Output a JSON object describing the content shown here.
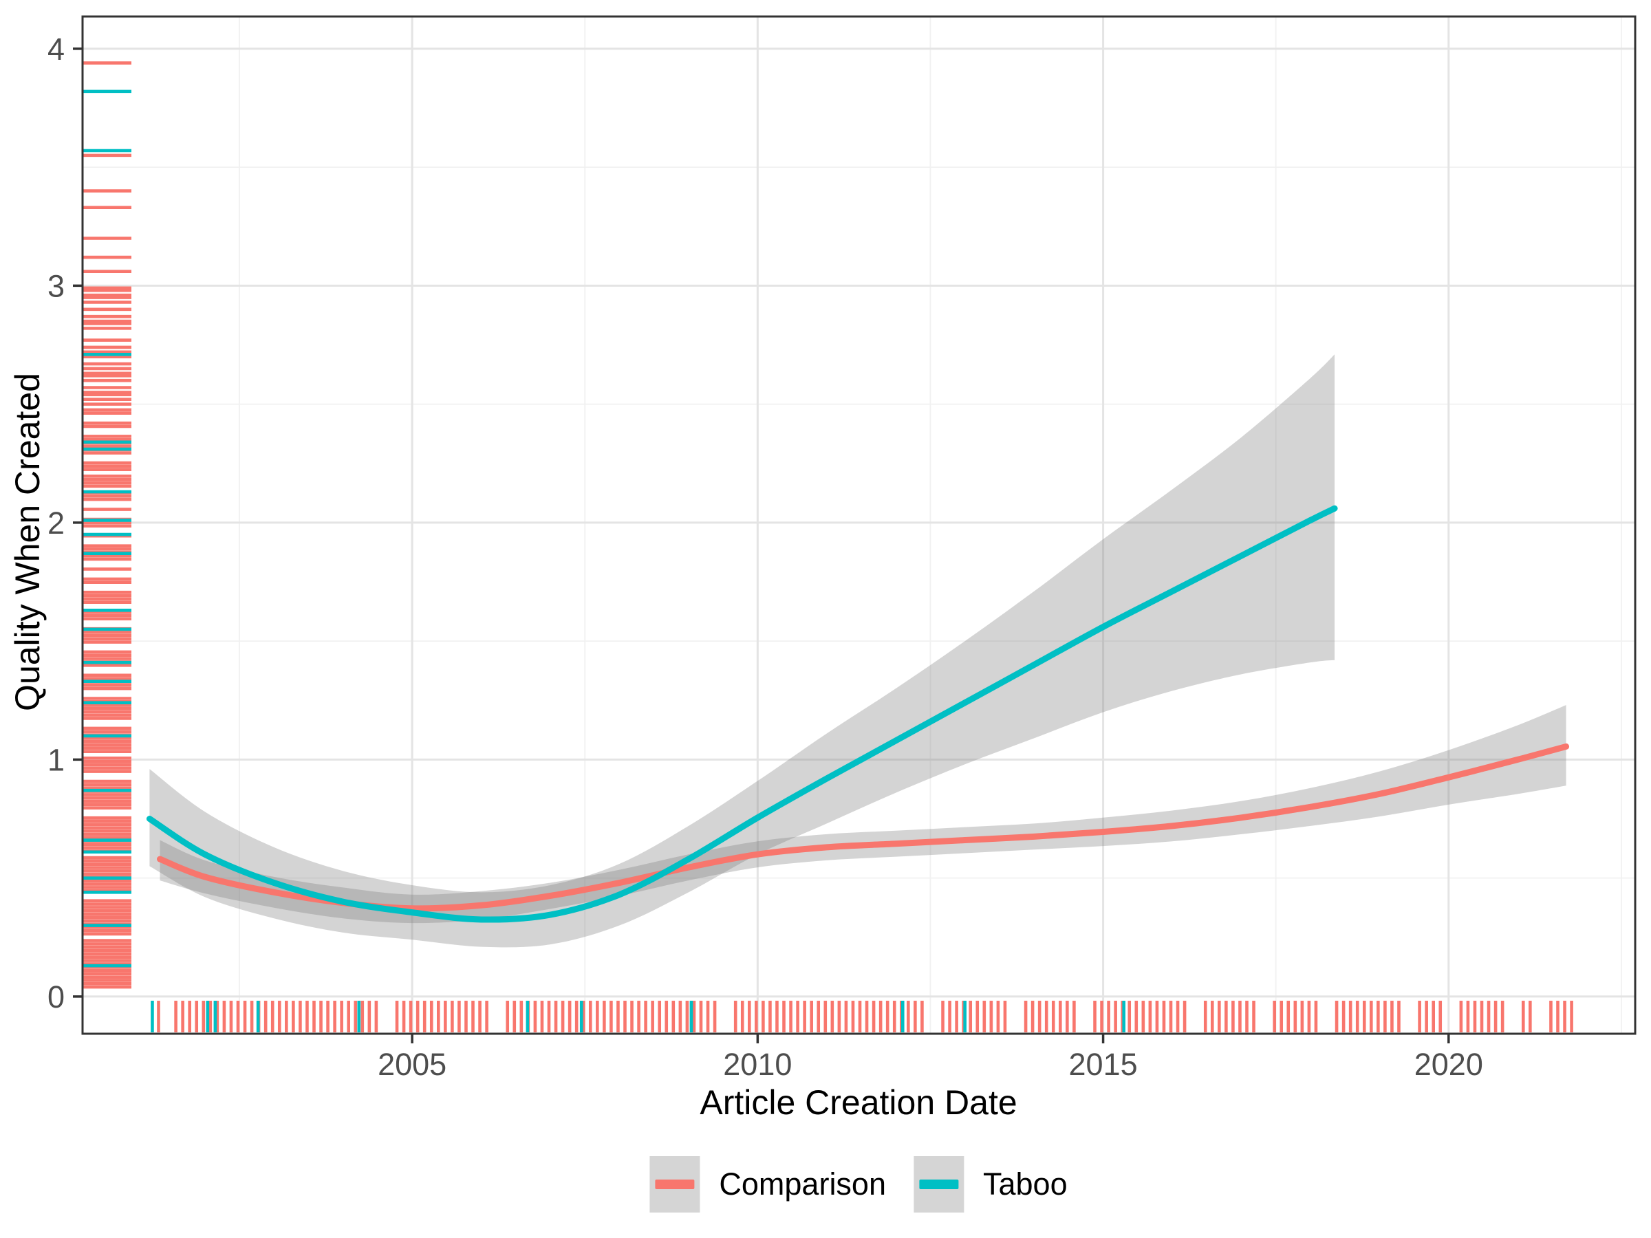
{
  "figure": {
    "x_axis_title": "Article Creation Date",
    "y_axis_title": "Quality When Created"
  },
  "legend": {
    "position": "bottom-center",
    "key_fill": "#D5D5D5",
    "items": [
      {
        "label": "Comparison",
        "color": "#F8766D"
      },
      {
        "label": "Taboo",
        "color": "#00BFC4"
      }
    ]
  },
  "colors": {
    "comparison": "#F8766D",
    "taboo": "#00BFC4",
    "ribbon": "rgba(125,125,125,0.33)",
    "grid_major": "#E4E4E4",
    "grid_minor": "#F1F1F1",
    "panel_border": "#333333",
    "tick_mark": "#333333",
    "tick_label": "#4D4D4D",
    "panel_bg": "#FFFFFF"
  },
  "chart_data": {
    "type": "line",
    "subtype": "loess-smooth-with-confidence-ribbons-and-rugs",
    "title": "",
    "xlabel": "Article Creation Date",
    "ylabel": "Quality When Created",
    "grid": "on",
    "legend_position": "bottom",
    "xlim": [
      2000.23,
      2022.7
    ],
    "ylim": [
      -0.157,
      4.136
    ],
    "x_major_ticks": [
      2005,
      2010,
      2015,
      2020
    ],
    "x_minor_ticks": [
      2002.5,
      2007.5,
      2012.5,
      2017.5,
      2022.5
    ],
    "x_tick_labels": [
      "2005",
      "2010",
      "2015",
      "2020"
    ],
    "y_major_ticks": [
      0,
      1,
      2,
      3,
      4
    ],
    "y_minor_ticks": [
      0.5,
      1.5,
      2.5,
      3.5
    ],
    "y_tick_labels": [
      "0",
      "1",
      "2",
      "3",
      "4"
    ],
    "series": [
      {
        "name": "Comparison",
        "color": "#F8766D",
        "x": [
          2001.35,
          2002,
          2003,
          2004,
          2005,
          2006,
          2007,
          2008,
          2009,
          2010,
          2011,
          2012,
          2013,
          2014,
          2015,
          2016,
          2017,
          2018,
          2019,
          2020,
          2021,
          2021.7
        ],
        "y": [
          0.58,
          0.505,
          0.44,
          0.395,
          0.372,
          0.385,
          0.425,
          0.48,
          0.545,
          0.6,
          0.63,
          0.645,
          0.66,
          0.675,
          0.695,
          0.72,
          0.755,
          0.8,
          0.855,
          0.925,
          1.0,
          1.055
        ],
        "ymin": [
          0.49,
          0.435,
          0.375,
          0.33,
          0.31,
          0.325,
          0.37,
          0.425,
          0.49,
          0.545,
          0.575,
          0.59,
          0.605,
          0.62,
          0.635,
          0.655,
          0.685,
          0.72,
          0.76,
          0.81,
          0.855,
          0.89
        ],
        "ymax": [
          0.66,
          0.575,
          0.505,
          0.46,
          0.43,
          0.445,
          0.48,
          0.535,
          0.6,
          0.655,
          0.685,
          0.7,
          0.715,
          0.73,
          0.755,
          0.785,
          0.825,
          0.88,
          0.95,
          1.04,
          1.145,
          1.23
        ]
      },
      {
        "name": "Taboo",
        "color": "#00BFC4",
        "x": [
          2001.2,
          2002,
          2003,
          2004,
          2005,
          2006,
          2007,
          2008,
          2009,
          2010,
          2011,
          2012,
          2013,
          2014,
          2015,
          2016,
          2017,
          2018,
          2018.35
        ],
        "y": [
          0.75,
          0.6,
          0.48,
          0.4,
          0.355,
          0.325,
          0.345,
          0.43,
          0.58,
          0.755,
          0.92,
          1.08,
          1.24,
          1.4,
          1.56,
          1.71,
          1.86,
          2.01,
          2.06
        ],
        "ymin": [
          0.55,
          0.42,
          0.33,
          0.27,
          0.24,
          0.21,
          0.22,
          0.3,
          0.44,
          0.6,
          0.73,
          0.86,
          0.98,
          1.09,
          1.2,
          1.29,
          1.36,
          1.41,
          1.42
        ],
        "ymax": [
          0.96,
          0.78,
          0.63,
          0.53,
          0.47,
          0.44,
          0.47,
          0.56,
          0.72,
          0.91,
          1.11,
          1.3,
          1.5,
          1.71,
          1.93,
          2.14,
          2.36,
          2.61,
          2.71
        ]
      }
    ],
    "rug_left": {
      "comparison": {
        "dense_min": 0.04,
        "dense_max": 2.48,
        "dense_step": 0.014,
        "gap_values": [
          0.25,
          0.42,
          0.6,
          0.78,
          0.93,
          1.02,
          1.15,
          1.28,
          1.38,
          1.47,
          1.57,
          1.64,
          1.73,
          1.78,
          1.83,
          1.92,
          1.97,
          2.04,
          2.08,
          2.14,
          2.21,
          2.27,
          2.38,
          2.44
        ],
        "sparse_values": [
          2.5,
          2.52,
          2.54,
          2.55,
          2.57,
          2.6,
          2.62,
          2.63,
          2.65,
          2.67,
          2.7,
          2.72,
          2.74,
          2.77,
          2.82,
          2.84,
          2.85,
          2.87,
          2.9,
          2.93,
          2.95,
          2.96,
          2.98,
          2.99,
          3.06,
          3.12,
          3.2,
          3.33,
          3.4,
          3.55,
          3.94
        ]
      },
      "taboo_values": [
        3.82,
        3.57,
        2.71,
        2.34,
        2.31,
        2.13,
        2.01,
        1.95,
        1.87,
        1.63,
        1.55,
        1.41,
        1.33,
        1.24,
        1.1,
        0.87,
        0.66,
        0.61,
        0.5,
        0.44,
        0.3,
        0.13
      ]
    },
    "rug_bottom": {
      "comparison": {
        "dense_min": 2001.58,
        "dense_max": 2021.86,
        "dense_step": 0.1,
        "gap_values": [
          2004.6,
          2006.2,
          2009.5,
          2012.5,
          2013.7,
          2014.7,
          2016.3,
          2017.3,
          2018.2,
          2019.4,
          2020.0,
          2020.9,
          2021.3
        ],
        "sparse_values": [
          2001.33
        ]
      },
      "taboo_values": [
        2001.24,
        2002.04,
        2002.15,
        2002.77,
        2004.23,
        2006.67,
        2007.45,
        2009.04,
        2012.1,
        2013.0,
        2015.3
      ]
    }
  }
}
